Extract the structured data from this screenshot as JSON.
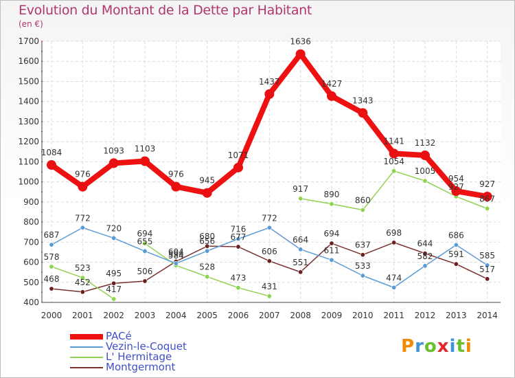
{
  "title": "Evolution du Montant de la Dette par Habitant",
  "unit": "(en €)",
  "logo": {
    "text": "Proxiti",
    "colors": [
      "#f08a00",
      "#3f93d9",
      "#6cbf2c",
      "#e4262b",
      "#3f93d9",
      "#6cbf2c",
      "#f08a00"
    ]
  },
  "chart_data": {
    "type": "line",
    "x": [
      "2000",
      "2001",
      "2002",
      "2003",
      "2004",
      "2005",
      "2006",
      "2007",
      "2008",
      "2009",
      "2010",
      "2011",
      "2012",
      "2013",
      "2014"
    ],
    "ylim": [
      400,
      1700
    ],
    "yticks": [
      "400",
      "500",
      "600",
      "700",
      "800",
      "900",
      "1000",
      "1100",
      "1200",
      "1300",
      "1400",
      "1500",
      "1600",
      "1700"
    ],
    "grid": true,
    "legend_position": "bottom-left",
    "series": [
      {
        "name": "PACé",
        "color": "#ee1111",
        "dot": "#e81010",
        "values": [
          1084,
          976,
          1093,
          1103,
          976,
          945,
          1071,
          1437,
          1636,
          1427,
          1343,
          1141,
          1132,
          954,
          927
        ],
        "labels": [
          "1084",
          "976",
          "1093",
          "1103",
          "976",
          "945",
          "1071",
          "1437",
          "1636",
          "1427",
          "1343",
          "1141",
          "1132",
          "954",
          "927"
        ]
      },
      {
        "name": "Vezin-le-Coquet",
        "color": "#5b9bd5",
        "dot": "#5b9bd5",
        "values": [
          687,
          772,
          720,
          655,
          594,
          656,
          716,
          772,
          664,
          611,
          533,
          474,
          582,
          686,
          585
        ],
        "labels": [
          "687",
          "772",
          "720",
          "655",
          "594",
          "656",
          "716",
          "772",
          "664",
          "611",
          "533",
          "474",
          "582",
          "686",
          "585"
        ]
      },
      {
        "name": "L' Hermitage",
        "color": "#92d050",
        "dot": "#8cd44c",
        "values": [
          578,
          523,
          417,
          694,
          584,
          528,
          473,
          431,
          917,
          890,
          860,
          1054,
          1005,
          927,
          867
        ],
        "labels": [
          "578",
          "523",
          "417",
          "694",
          "584",
          "528",
          "473",
          "431",
          "917",
          "890",
          "860",
          "1054",
          "1005",
          "927",
          "867"
        ],
        "gaps_after_index": [
          2,
          7
        ]
      },
      {
        "name": "Montgermont",
        "color": "#7b2f2f",
        "dot": "#6b1f1f",
        "values": [
          468,
          452,
          495,
          506,
          604,
          680,
          677,
          606,
          551,
          694,
          637,
          698,
          644,
          591,
          517
        ],
        "labels": [
          "468",
          "452",
          "495",
          "506",
          "604",
          "680",
          "677",
          "606",
          "551",
          "694",
          "637",
          "698",
          "644",
          "591",
          "517"
        ]
      }
    ]
  }
}
